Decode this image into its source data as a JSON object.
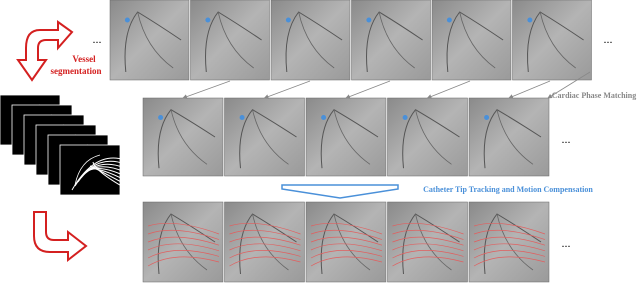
{
  "left": {
    "label_line1": "Vessel",
    "label_line2": "segmentation"
  },
  "labels": {
    "phase_matching": "Cardiac Phase Matching",
    "tracking": "Catheter Tip Tracking and Motion Compensation"
  },
  "ellipses": [
    "...",
    "...",
    "...",
    "..."
  ]
}
